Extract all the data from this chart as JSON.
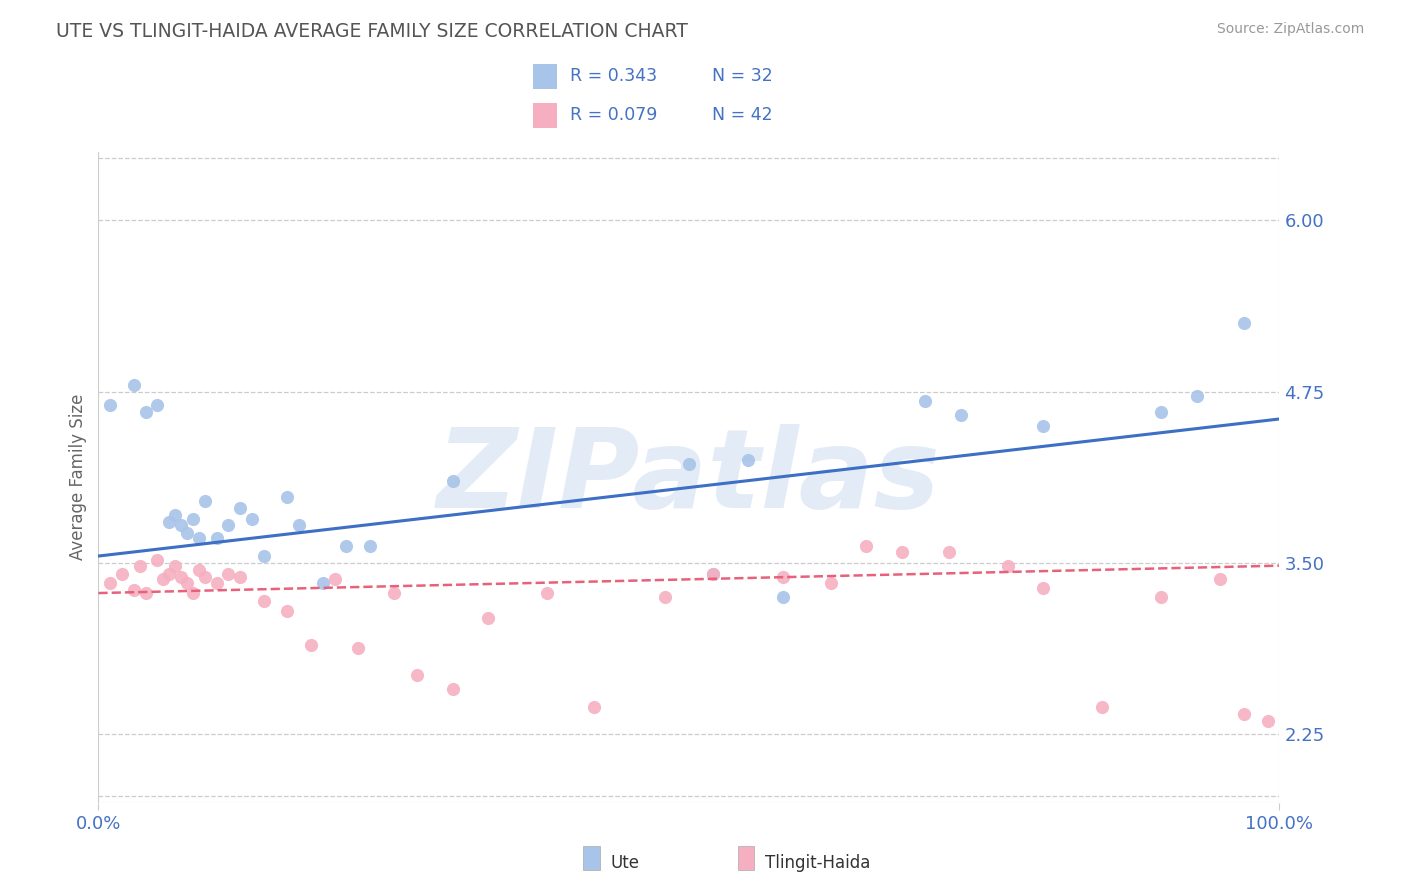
{
  "title": "UTE VS TLINGIT-HAIDA AVERAGE FAMILY SIZE CORRELATION CHART",
  "source_text": "Source: ZipAtlas.com",
  "ylabel": "Average Family Size",
  "xlim": [
    0.0,
    1.0
  ],
  "ylim": [
    1.75,
    6.5
  ],
  "yticks": [
    2.25,
    3.5,
    4.75,
    6.0
  ],
  "xticklabels": [
    "0.0%",
    "100.0%"
  ],
  "ute_color": "#a8c4e8",
  "tlingit_color": "#f5afc0",
  "ute_line_color": "#3d6fc4",
  "tlingit_line_color": "#e8607a",
  "grid_color": "#cccccc",
  "title_color": "#555555",
  "tick_color": "#4472c4",
  "watermark": "ZIPatlas",
  "watermark_color": "#c8d8f0",
  "legend_label_ute": "Ute",
  "legend_label_tlingit": "Tlingit-Haida",
  "ute_x": [
    0.01,
    0.03,
    0.04,
    0.05,
    0.06,
    0.065,
    0.07,
    0.075,
    0.08,
    0.085,
    0.09,
    0.1,
    0.11,
    0.12,
    0.13,
    0.14,
    0.16,
    0.17,
    0.19,
    0.21,
    0.23,
    0.3,
    0.5,
    0.52,
    0.55,
    0.58,
    0.7,
    0.73,
    0.8,
    0.9,
    0.93,
    0.97
  ],
  "ute_y": [
    4.65,
    4.8,
    4.6,
    4.65,
    3.8,
    3.85,
    3.78,
    3.72,
    3.82,
    3.68,
    3.95,
    3.68,
    3.78,
    3.9,
    3.82,
    3.55,
    3.98,
    3.78,
    3.35,
    3.62,
    3.62,
    4.1,
    4.22,
    3.42,
    4.25,
    3.25,
    4.68,
    4.58,
    4.5,
    4.6,
    4.72,
    5.25
  ],
  "tlingit_x": [
    0.01,
    0.02,
    0.03,
    0.035,
    0.04,
    0.05,
    0.055,
    0.06,
    0.065,
    0.07,
    0.075,
    0.08,
    0.085,
    0.09,
    0.1,
    0.11,
    0.12,
    0.14,
    0.16,
    0.18,
    0.2,
    0.22,
    0.25,
    0.27,
    0.3,
    0.33,
    0.38,
    0.42,
    0.48,
    0.52,
    0.58,
    0.62,
    0.65,
    0.68,
    0.72,
    0.77,
    0.8,
    0.85,
    0.9,
    0.95,
    0.97,
    0.99
  ],
  "tlingit_y": [
    3.35,
    3.42,
    3.3,
    3.48,
    3.28,
    3.52,
    3.38,
    3.42,
    3.48,
    3.4,
    3.35,
    3.28,
    3.45,
    3.4,
    3.35,
    3.42,
    3.4,
    3.22,
    3.15,
    2.9,
    3.38,
    2.88,
    3.28,
    2.68,
    2.58,
    3.1,
    3.28,
    2.45,
    3.25,
    3.42,
    3.4,
    3.35,
    3.62,
    3.58,
    3.58,
    3.48,
    3.32,
    2.45,
    3.25,
    3.38,
    2.4,
    2.35
  ],
  "ute_trend_x": [
    0.0,
    1.0
  ],
  "ute_trend_y": [
    3.55,
    4.55
  ],
  "tlingit_trend_x": [
    0.0,
    1.0
  ],
  "tlingit_trend_y": [
    3.28,
    3.48
  ],
  "background_color": "#ffffff",
  "legend_box_color": "#e8e8e8"
}
